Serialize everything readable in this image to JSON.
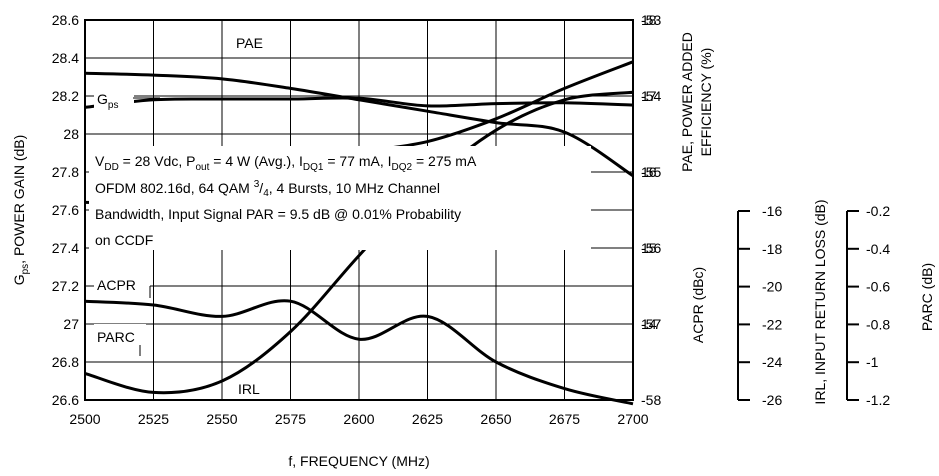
{
  "chart_data": {
    "type": "line",
    "x_label": "f, FREQUENCY (MHz)",
    "x_ticks": [
      2500,
      2525,
      2550,
      2575,
      2600,
      2625,
      2650,
      2675,
      2700
    ],
    "xlim": [
      2500,
      2700
    ],
    "grid": true,
    "left_axis": {
      "label_main": "G",
      "label_sub": "ps",
      "label_rest": ", POWER GAIN (dB)",
      "ylim": [
        26.6,
        28.6
      ],
      "tick_labels": [
        "28.6",
        "28.4",
        "28.2",
        "28",
        "27.8",
        "27.6",
        "27.4",
        "27.2",
        "27",
        "26.8",
        "26.6"
      ],
      "tick_values": [
        28.6,
        28.4,
        28.2,
        28.0,
        27.8,
        27.6,
        27.4,
        27.2,
        27.0,
        26.8,
        26.6
      ]
    },
    "right_axis_pae": {
      "label_line1": "PAE, POWER ADDED",
      "label_line2": "EFFICIENCY (%)",
      "ylim": [
        13,
        18
      ],
      "tick_labels": [
        "18",
        "17",
        "16",
        "15",
        "14"
      ],
      "tick_values": [
        18,
        17,
        16,
        15,
        14
      ]
    },
    "right_axis_acpr": {
      "label": "ACPR (dBc)",
      "ylim": [
        -58,
        -53
      ],
      "tick_labels": [
        "-53",
        "-54",
        "-55",
        "-56",
        "-57",
        "-58"
      ],
      "tick_values": [
        -53,
        -54,
        -55,
        -56,
        -57,
        -58
      ]
    },
    "right_axis_irl": {
      "label": "IRL, INPUT RETURN LOSS (dB)",
      "ylim": [
        -26,
        -16
      ],
      "tick_labels": [
        "-16",
        "-18",
        "-20",
        "-22",
        "-24",
        "-26"
      ],
      "tick_values": [
        -16,
        -18,
        -20,
        -22,
        -24,
        -26
      ]
    },
    "right_axis_parc": {
      "label": "PARC (dB)",
      "ylim": [
        -1.2,
        -0.2
      ],
      "tick_labels": [
        "-0.2",
        "-0.4",
        "-0.6",
        "-0.8",
        "-1",
        "-1.2"
      ],
      "tick_values": [
        -0.2,
        -0.4,
        -0.6,
        -0.8,
        -1.0,
        -1.2
      ]
    },
    "series": [
      {
        "name": "PAE",
        "axis": "pae",
        "x": [
          2500,
          2525,
          2550,
          2575,
          2600,
          2625,
          2650,
          2675,
          2700
        ],
        "values": [
          16.85,
          16.95,
          16.96,
          16.96,
          16.97,
          16.87,
          16.9,
          16.91,
          16.88
        ]
      },
      {
        "name": "Gps",
        "axis": "left",
        "x": [
          2500,
          2525,
          2550,
          2575,
          2600,
          2625,
          2650,
          2675,
          2700
        ],
        "values": [
          28.32,
          28.31,
          28.29,
          28.24,
          28.18,
          28.12,
          28.06,
          28.01,
          27.78
        ]
      },
      {
        "name": "ACPR",
        "axis": "acpr",
        "x": [
          2500,
          2525,
          2550,
          2575,
          2600,
          2625,
          2650,
          2675,
          2700
        ],
        "values": [
          -55.4,
          -55.4,
          -55.3,
          -55.0,
          -54.75,
          -54.6,
          -54.3,
          -53.9,
          -53.55
        ]
      },
      {
        "name": "IRL",
        "axis": "irl",
        "x": [
          2500,
          2525,
          2550,
          2575,
          2600,
          2625,
          2650,
          2675,
          2700
        ],
        "values": [
          -25.3,
          -25.8,
          -25.5,
          -24.2,
          -22.2,
          -20.3,
          -18.9,
          -18.1,
          -17.9
        ]
      },
      {
        "name": "PARC",
        "axis": "parc",
        "x": [
          2500,
          2525,
          2550,
          2575,
          2600,
          2625,
          2650,
          2675,
          2700
        ],
        "values": [
          -0.94,
          -0.95,
          -0.98,
          -0.94,
          -1.04,
          -0.98,
          -1.1,
          -1.17,
          -1.21
        ]
      }
    ],
    "curve_labels": {
      "pae": "PAE",
      "gps_main": "G",
      "gps_sub": "ps",
      "acpr": "ACPR",
      "parc": "PARC",
      "irl": "IRL"
    },
    "annotation": {
      "line1": {
        "v": "V",
        "v_sub": "DD",
        "v_rest": " = 28 Vdc, P",
        "p_sub": "out",
        "p_rest": " = 4 W (Avg.), I",
        "i1_sub": "DQ1",
        "i1_rest": " = 77 mA, I",
        "i2_sub": "DQ2",
        "i2_rest": " = 275 mA"
      },
      "line2": {
        "pre": "OFDM 802.16d, 64 QAM ",
        "sup": "3",
        "post": "/",
        "sub": "4",
        "rest": ", 4 Bursts, 10 MHz Channel"
      },
      "line3": "Bandwidth, Input Signal PAR = 9.5 dB @ 0.01% Probability",
      "line4": "on CCDF"
    }
  }
}
